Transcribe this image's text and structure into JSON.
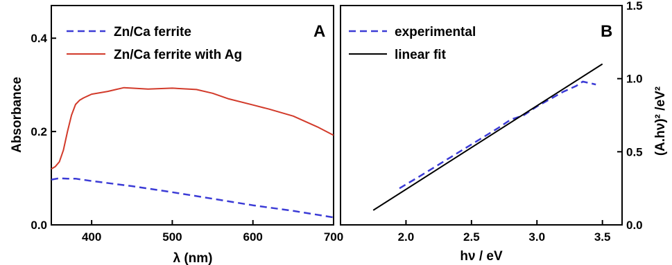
{
  "colors": {
    "dashed_blue": "#3b3bd6",
    "solid_red": "#d23a2a",
    "black": "#000000"
  },
  "chart_data": [
    {
      "panel": "A",
      "type": "line",
      "xlabel": "λ (nm)",
      "ylabel": "Absorbance",
      "xlim": [
        350,
        700
      ],
      "ylim": [
        0,
        0.47
      ],
      "xticks": [
        "400",
        "500",
        "600",
        "700"
      ],
      "yticks": [
        "0.0",
        "0.2",
        "0.4"
      ],
      "legend_position": "top-left",
      "grid": false,
      "series": [
        {
          "name": "Zn/Ca ferrite",
          "style": "dashed",
          "color": "#3b3bd6",
          "x": [
            350,
            360,
            370,
            380,
            400,
            450,
            500,
            550,
            600,
            650,
            700
          ],
          "y": [
            0.097,
            0.1,
            0.099,
            0.099,
            0.094,
            0.083,
            0.07,
            0.056,
            0.042,
            0.03,
            0.016
          ]
        },
        {
          "name": "Zn/Ca ferrite with Ag",
          "style": "solid",
          "color": "#d23a2a",
          "x": [
            350,
            355,
            360,
            365,
            370,
            375,
            380,
            385,
            390,
            400,
            410,
            420,
            430,
            440,
            450,
            470,
            500,
            530,
            550,
            570,
            600,
            620,
            650,
            680,
            700
          ],
          "y": [
            0.12,
            0.125,
            0.135,
            0.16,
            0.2,
            0.235,
            0.258,
            0.267,
            0.272,
            0.28,
            0.283,
            0.286,
            0.29,
            0.294,
            0.293,
            0.291,
            0.293,
            0.29,
            0.282,
            0.27,
            0.257,
            0.248,
            0.233,
            0.21,
            0.192
          ]
        }
      ]
    },
    {
      "panel": "B",
      "type": "line",
      "xlabel": "hν / eV",
      "ylabel": "(A.hν)² /eV²",
      "xlim": [
        1.5,
        3.65
      ],
      "ylim": [
        0,
        1.5
      ],
      "xticks": [
        "2.0",
        "2.5",
        "3.0",
        "3.5"
      ],
      "yticks": [
        "0.0",
        "0.5",
        "1.0",
        "1.5"
      ],
      "yaxis_side": "right",
      "legend_position": "top-left",
      "grid": false,
      "series": [
        {
          "name": "experimental",
          "style": "dashed",
          "color": "#3b3bd6",
          "x": [
            1.95,
            2.1,
            2.3,
            2.5,
            2.7,
            2.8,
            2.9,
            3.0,
            3.1,
            3.2,
            3.3,
            3.35,
            3.45
          ],
          "y": [
            0.25,
            0.33,
            0.44,
            0.55,
            0.66,
            0.72,
            0.75,
            0.81,
            0.86,
            0.91,
            0.95,
            0.98,
            0.96
          ]
        },
        {
          "name": "linear fit",
          "style": "solid",
          "color": "#000000",
          "x": [
            1.75,
            3.5
          ],
          "y": [
            0.1,
            1.1
          ]
        }
      ]
    }
  ]
}
